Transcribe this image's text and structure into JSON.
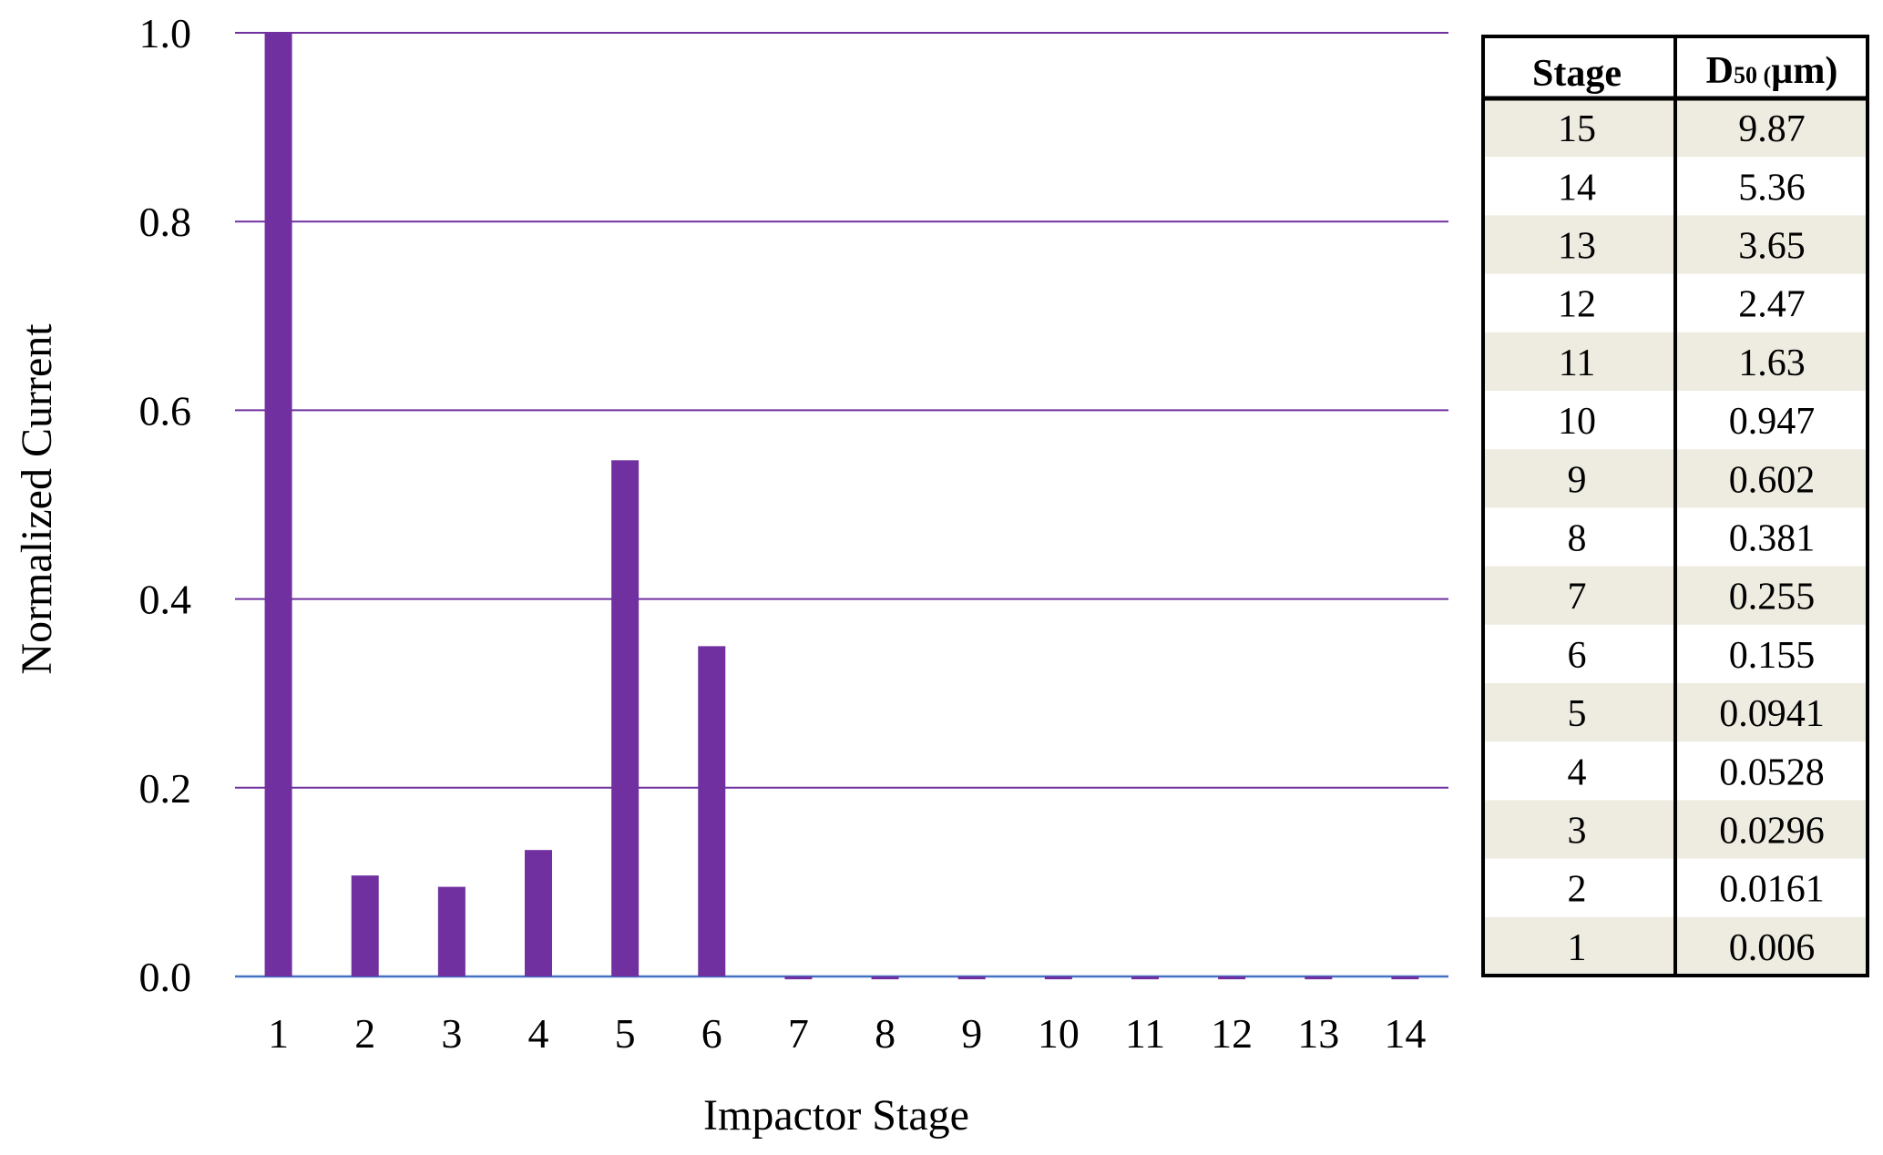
{
  "chart_data": {
    "type": "bar",
    "xlabel": "Impactor Stage",
    "ylabel": "Normalized  Current",
    "ylim": [
      0,
      1.0
    ],
    "yticks": [
      "0.0",
      "0.2",
      "0.4",
      "0.6",
      "0.8",
      "1.0"
    ],
    "categories": [
      "1",
      "2",
      "3",
      "4",
      "5",
      "6",
      "7",
      "8",
      "9",
      "10",
      "11",
      "12",
      "13",
      "14"
    ],
    "values": [
      1.0,
      0.107,
      0.095,
      0.134,
      0.547,
      0.35,
      -0.003,
      -0.003,
      -0.003,
      -0.003,
      -0.003,
      -0.003,
      -0.003,
      -0.003
    ],
    "grid": true,
    "colors": {
      "bar": "#7030a0",
      "gridline": "#7030a0",
      "baseline": "#4472c4"
    }
  },
  "table": {
    "header_stage": "Stage",
    "header_d50_main": "D",
    "header_d50_sub": "50 (",
    "header_d50_unit": "µm)",
    "rows": [
      {
        "stage": "15",
        "d50": "9.87"
      },
      {
        "stage": "14",
        "d50": "5.36"
      },
      {
        "stage": "13",
        "d50": "3.65"
      },
      {
        "stage": "12",
        "d50": "2.47"
      },
      {
        "stage": "11",
        "d50": "1.63"
      },
      {
        "stage": "10",
        "d50": "0.947"
      },
      {
        "stage": "9",
        "d50": "0.602"
      },
      {
        "stage": "8",
        "d50": "0.381"
      },
      {
        "stage": "7",
        "d50": "0.255"
      },
      {
        "stage": "6",
        "d50": "0.155"
      },
      {
        "stage": "5",
        "d50": "0.0941"
      },
      {
        "stage": "4",
        "d50": "0.0528"
      },
      {
        "stage": "3",
        "d50": "0.0296"
      },
      {
        "stage": "2",
        "d50": "0.0161"
      },
      {
        "stage": "1",
        "d50": "0.006"
      }
    ],
    "colors": {
      "shaded_row": "#eeece1",
      "border": "#000000"
    }
  }
}
